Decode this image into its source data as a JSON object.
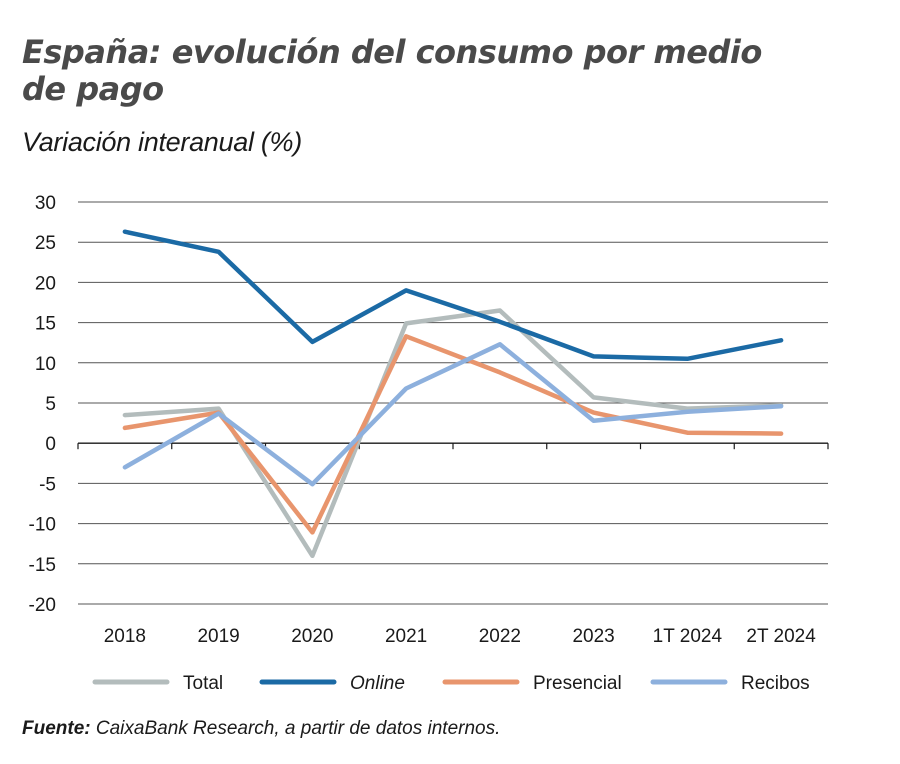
{
  "header": {
    "title": "España: evolución del consumo por medio de pago",
    "subtitle": "Variación interanual (%)"
  },
  "footer": {
    "source_label": "Fuente:",
    "source_text": "CaixaBank Research, a partir de datos internos."
  },
  "chart_data": {
    "type": "line",
    "title": "España: evolución del consumo por medio de pago",
    "subtitle": "Variación interanual (%)",
    "categories": [
      "2018",
      "2019",
      "2020",
      "2021",
      "2022",
      "2023",
      "1T 2024",
      "2T 2024"
    ],
    "ylim": [
      -20,
      30
    ],
    "yticks": [
      30,
      25,
      20,
      15,
      10,
      5,
      0,
      -5,
      -10,
      -15,
      -20
    ],
    "grid": "horizontal",
    "legend_position": "bottom",
    "series": [
      {
        "name": "Total",
        "color": "#b3bcbc",
        "values": [
          3.5,
          4.3,
          -14.0,
          14.9,
          16.5,
          5.7,
          4.3,
          4.7
        ]
      },
      {
        "name": "Online",
        "color": "#1b6aa5",
        "italic": true,
        "values": [
          26.3,
          23.8,
          12.6,
          19.0,
          15.1,
          10.8,
          10.5,
          12.8
        ]
      },
      {
        "name": "Presencial",
        "color": "#e8956d",
        "values": [
          1.9,
          3.8,
          -11.1,
          13.3,
          8.8,
          3.8,
          1.3,
          1.2
        ]
      },
      {
        "name": "Recibos",
        "color": "#8db0dd",
        "values": [
          -3.0,
          3.7,
          -5.1,
          6.8,
          12.3,
          2.8,
          3.9,
          4.6
        ]
      }
    ]
  }
}
